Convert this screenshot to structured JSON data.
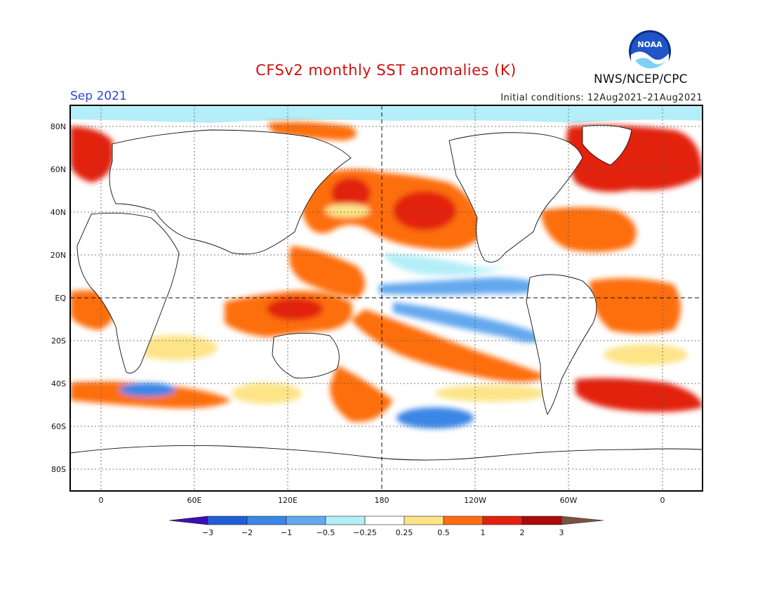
{
  "header": {
    "title": "CFSv2 monthly SST anomalies (K)",
    "month": "Sep 2021",
    "initial_conditions": "Initial conditions: 12Aug2021–21Aug2021",
    "agency": "NWS/NCEP/CPC",
    "logo_text": "NOAA",
    "logo_icon": "noaa-logo-icon"
  },
  "axes": {
    "lat_labels": [
      "80N",
      "60N",
      "40N",
      "20N",
      "EQ",
      "20S",
      "40S",
      "60S",
      "80S"
    ],
    "lon_labels": [
      "0",
      "60E",
      "120E",
      "180",
      "120W",
      "60W",
      "0"
    ]
  },
  "colorbar": {
    "tick_labels": [
      "−3",
      "−2",
      "−1",
      "−0.5",
      "−0.25",
      "0.25",
      "0.5",
      "1",
      "2",
      "3"
    ],
    "colors": [
      "#3a0fb5",
      "#1f5fd6",
      "#3a86e6",
      "#64a8ee",
      "#b4eef8",
      "#ffffff",
      "#fde487",
      "#fd6e10",
      "#e2220e",
      "#ac0b07",
      "#7a5244"
    ]
  }
}
